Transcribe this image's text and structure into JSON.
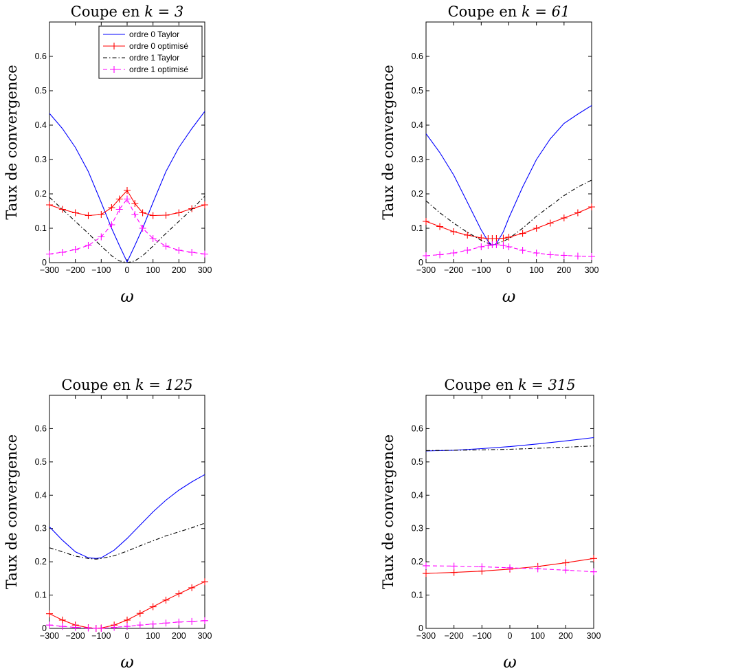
{
  "chart_data": [
    {
      "type": "line",
      "title": "Coupe en ",
      "title_math": "k = 3",
      "xlabel": "ω",
      "ylabel": "Taux de convergence",
      "xlim": [
        -300,
        300
      ],
      "ylim": [
        0,
        0.7
      ],
      "xticks": [
        "−300",
        "−200",
        "−100",
        "0",
        "100",
        "200",
        "300"
      ],
      "yticks": [
        "0",
        "0.1",
        "0.2",
        "0.3",
        "0.4",
        "0.5",
        "0.6"
      ],
      "grid": false,
      "legend": {
        "placement": "top-right",
        "entries": [
          "ordre 0 Taylor",
          "ordre 0 optimisé",
          "ordre 1 Taylor",
          "ordre 1 optimisé"
        ]
      },
      "x": [
        -300,
        -250,
        -200,
        -150,
        -100,
        -60,
        -30,
        0,
        30,
        60,
        100,
        150,
        200,
        250,
        300
      ],
      "series": [
        {
          "name": "ordre 0 Taylor",
          "color": "#0000ff",
          "dash": "none",
          "marker": false,
          "values": [
            0.434,
            0.39,
            0.335,
            0.265,
            0.175,
            0.1,
            0.05,
            0.002,
            0.05,
            0.1,
            0.175,
            0.265,
            0.335,
            0.39,
            0.44
          ]
        },
        {
          "name": "ordre 0 optimisé",
          "color": "#ff0000",
          "dash": "none",
          "marker": true,
          "values": [
            0.168,
            0.155,
            0.145,
            0.137,
            0.14,
            0.16,
            0.185,
            0.21,
            0.172,
            0.145,
            0.137,
            0.138,
            0.145,
            0.157,
            0.168
          ]
        },
        {
          "name": "ordre 1 Taylor",
          "color": "#000000",
          "dash": "6,3,1.5,3",
          "marker": false,
          "values": [
            0.19,
            0.155,
            0.12,
            0.085,
            0.048,
            0.02,
            0.005,
            0.0,
            0.005,
            0.02,
            0.048,
            0.085,
            0.12,
            0.155,
            0.193
          ]
        },
        {
          "name": "ordre 1 optimisé",
          "color": "#ff00ff",
          "dash": "6,4",
          "marker": true,
          "values": [
            0.025,
            0.03,
            0.038,
            0.05,
            0.075,
            0.11,
            0.155,
            0.185,
            0.14,
            0.1,
            0.07,
            0.048,
            0.036,
            0.03,
            0.025
          ]
        }
      ]
    },
    {
      "type": "line",
      "title": "Coupe en ",
      "title_math": "k = 61",
      "xlabel": "ω",
      "ylabel": "Taux de convergence",
      "xlim": [
        -300,
        300
      ],
      "ylim": [
        0,
        0.7
      ],
      "xticks": [
        "−300",
        "−200",
        "−100",
        "0",
        "100",
        "200",
        "300"
      ],
      "yticks": [
        "0",
        "0.1",
        "0.2",
        "0.3",
        "0.4",
        "0.5",
        "0.6"
      ],
      "grid": false,
      "x": [
        -300,
        -250,
        -200,
        -150,
        -100,
        -75,
        -60,
        -45,
        -20,
        0,
        50,
        100,
        150,
        200,
        250,
        300
      ],
      "series": [
        {
          "name": "ordre 0 Taylor",
          "color": "#0000ff",
          "dash": "none",
          "marker": false,
          "values": [
            0.375,
            0.32,
            0.255,
            0.175,
            0.095,
            0.062,
            0.05,
            0.055,
            0.09,
            0.13,
            0.22,
            0.3,
            0.36,
            0.405,
            0.432,
            0.457
          ]
        },
        {
          "name": "ordre 0 optimisé",
          "color": "#ff0000",
          "dash": "none",
          "marker": true,
          "values": [
            0.12,
            0.105,
            0.09,
            0.08,
            0.072,
            0.07,
            0.07,
            0.07,
            0.071,
            0.074,
            0.085,
            0.1,
            0.115,
            0.13,
            0.145,
            0.162
          ]
        },
        {
          "name": "ordre 1 Taylor",
          "color": "#000000",
          "dash": "6,3,1.5,3",
          "marker": false,
          "values": [
            0.18,
            0.145,
            0.115,
            0.088,
            0.065,
            0.056,
            0.052,
            0.055,
            0.062,
            0.07,
            0.1,
            0.135,
            0.165,
            0.195,
            0.22,
            0.24
          ]
        },
        {
          "name": "ordre 1 optimisé",
          "color": "#ff00ff",
          "dash": "6,4",
          "marker": true,
          "values": [
            0.02,
            0.023,
            0.028,
            0.036,
            0.046,
            0.05,
            0.052,
            0.052,
            0.05,
            0.046,
            0.036,
            0.028,
            0.023,
            0.021,
            0.019,
            0.018
          ]
        }
      ]
    },
    {
      "type": "line",
      "title": "Coupe en ",
      "title_math": "k = 125",
      "xlabel": "ω",
      "ylabel": "Taux de convergence",
      "xlim": [
        -300,
        300
      ],
      "ylim": [
        0,
        0.7
      ],
      "xticks": [
        "−300",
        "−200",
        "−100",
        "0",
        "100",
        "200",
        "300"
      ],
      "yticks": [
        "0",
        "0.1",
        "0.2",
        "0.3",
        "0.4",
        "0.5",
        "0.6"
      ],
      "grid": false,
      "x": [
        -300,
        -250,
        -200,
        -150,
        -120,
        -100,
        -50,
        0,
        50,
        100,
        150,
        200,
        250,
        300
      ],
      "series": [
        {
          "name": "ordre 0 Taylor",
          "color": "#0000ff",
          "dash": "none",
          "marker": false,
          "values": [
            0.305,
            0.265,
            0.23,
            0.212,
            0.21,
            0.212,
            0.235,
            0.27,
            0.31,
            0.35,
            0.385,
            0.415,
            0.44,
            0.462
          ]
        },
        {
          "name": "ordre 0 optimisé",
          "color": "#ff0000",
          "dash": "none",
          "marker": true,
          "values": [
            0.044,
            0.025,
            0.01,
            0.002,
            0.0,
            0.001,
            0.01,
            0.025,
            0.045,
            0.065,
            0.085,
            0.104,
            0.122,
            0.14
          ]
        },
        {
          "name": "ordre 1 Taylor",
          "color": "#000000",
          "dash": "6,3,1.5,3",
          "marker": false,
          "values": [
            0.242,
            0.23,
            0.217,
            0.21,
            0.208,
            0.21,
            0.218,
            0.232,
            0.248,
            0.263,
            0.278,
            0.29,
            0.302,
            0.316
          ]
        },
        {
          "name": "ordre 1 optimisé",
          "color": "#ff00ff",
          "dash": "6,4",
          "marker": true,
          "values": [
            0.01,
            0.006,
            0.003,
            0.001,
            0.0,
            0.0,
            0.003,
            0.006,
            0.01,
            0.013,
            0.016,
            0.019,
            0.021,
            0.023
          ]
        }
      ]
    },
    {
      "type": "line",
      "title": "Coupe en ",
      "title_math": "k = 315",
      "xlabel": "ω",
      "ylabel": "Taux de convergence",
      "xlim": [
        -300,
        300
      ],
      "ylim": [
        0,
        0.7
      ],
      "xticks": [
        "−300",
        "−200",
        "−100",
        "0",
        "100",
        "200",
        "300"
      ],
      "yticks": [
        "0",
        "0.1",
        "0.2",
        "0.3",
        "0.4",
        "0.5",
        "0.6"
      ],
      "grid": false,
      "x": [
        -300,
        -200,
        -100,
        0,
        100,
        200,
        300
      ],
      "series": [
        {
          "name": "ordre 0 Taylor",
          "color": "#0000ff",
          "dash": "none",
          "marker": false,
          "values": [
            0.533,
            0.535,
            0.54,
            0.546,
            0.554,
            0.563,
            0.573
          ]
        },
        {
          "name": "ordre 0 optimisé",
          "color": "#ff0000",
          "dash": "none",
          "marker": true,
          "values": [
            0.165,
            0.168,
            0.172,
            0.178,
            0.186,
            0.197,
            0.21
          ]
        },
        {
          "name": "ordre 1 Taylor",
          "color": "#000000",
          "dash": "6,3,1.5,3",
          "marker": false,
          "values": [
            0.534,
            0.535,
            0.536,
            0.538,
            0.541,
            0.544,
            0.548
          ]
        },
        {
          "name": "ordre 1 optimisé",
          "color": "#ff00ff",
          "dash": "6,4",
          "marker": true,
          "values": [
            0.188,
            0.187,
            0.185,
            0.182,
            0.179,
            0.175,
            0.17
          ]
        }
      ]
    }
  ]
}
